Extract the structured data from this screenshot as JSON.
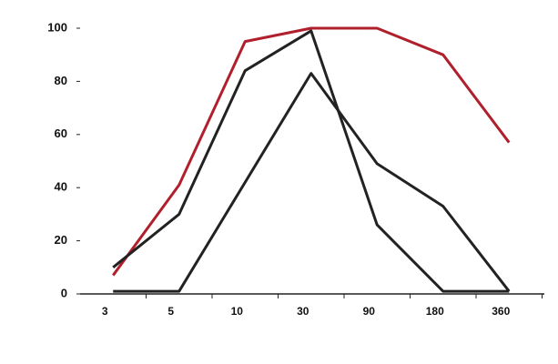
{
  "chart_data": {
    "type": "line",
    "categories": [
      "3",
      "5",
      "10",
      "30",
      "90",
      "180",
      "360"
    ],
    "series": [
      {
        "color": "#b0202c",
        "values": [
          7,
          41,
          95,
          100,
          100,
          90,
          57
        ]
      },
      {
        "color": "#222222",
        "values": [
          10,
          30,
          84,
          99,
          26,
          1,
          1
        ]
      },
      {
        "color": "#222222",
        "values": [
          1,
          1,
          42,
          83,
          49,
          33,
          1
        ]
      }
    ],
    "ylim": [
      0,
      100
    ],
    "yticks": [
      0,
      20,
      40,
      60,
      80,
      100
    ],
    "grid": false
  }
}
